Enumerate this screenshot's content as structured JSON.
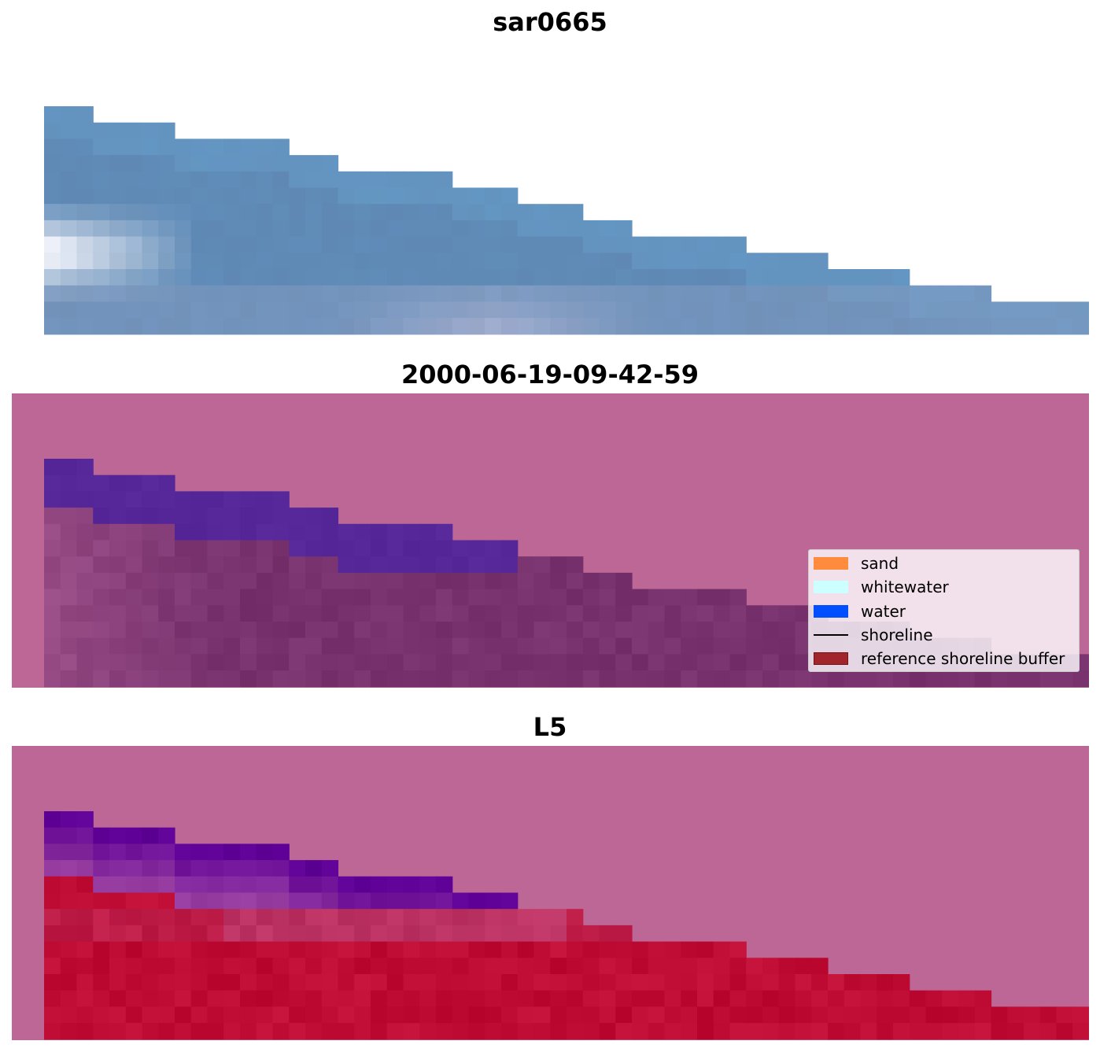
{
  "panels": [
    {
      "title": "sar0665"
    },
    {
      "title": "2000-06-19-09-42-59"
    },
    {
      "title": "L5"
    }
  ],
  "legend": {
    "items": [
      {
        "label": "sand",
        "kind": "patch",
        "color": "#ff8c3c"
      },
      {
        "label": "whitewater",
        "kind": "patch",
        "color": "#ccffff"
      },
      {
        "label": "water",
        "kind": "patch",
        "color": "#0050ff"
      },
      {
        "label": "shoreline",
        "kind": "line",
        "color": "#000000"
      },
      {
        "label": "reference shoreline buffer",
        "kind": "patch",
        "color": "#a0262c"
      }
    ]
  },
  "colors": {
    "buffer_overlay": "#bc6795",
    "background": "#ffffff"
  }
}
